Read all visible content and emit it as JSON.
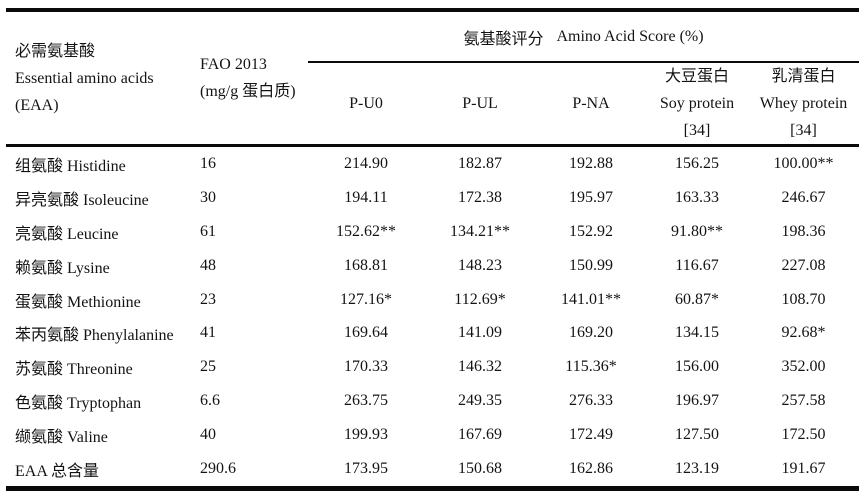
{
  "table": {
    "colors": {
      "text": "#131313",
      "rule": "#0a0a0a",
      "background": "#ffffff"
    },
    "header": {
      "eaa_lines": [
        "必需氨基酸",
        "Essential amino acids",
        "(EAA)"
      ],
      "fao_lines": [
        "FAO 2013",
        "(mg/g 蛋白质)"
      ],
      "group_title_zh": "氨基酸评分",
      "group_title_en": "Amino Acid Score (%)",
      "sub_columns": {
        "pu0": "P-U0",
        "pul": "P-UL",
        "pna": "P-NA",
        "soy_lines": [
          "大豆蛋白",
          "Soy protein",
          "[34]"
        ],
        "whey_lines": [
          "乳清蛋白",
          "Whey protein",
          "[34]"
        ]
      }
    },
    "rows": [
      [
        "组氨酸 Histidine",
        "16",
        "214.90",
        "182.87",
        "192.88",
        "156.25",
        "100.00**"
      ],
      [
        "异亮氨酸 Isoleucine",
        "30",
        "194.11",
        "172.38",
        "195.97",
        "163.33",
        "246.67"
      ],
      [
        "亮氨酸 Leucine",
        "61",
        "152.62**",
        "134.21**",
        "152.92",
        "91.80**",
        "198.36"
      ],
      [
        "赖氨酸 Lysine",
        "48",
        "168.81",
        "148.23",
        "150.99",
        "116.67",
        "227.08"
      ],
      [
        "蛋氨酸 Methionine",
        "23",
        "127.16*",
        "112.69*",
        "141.01**",
        "60.87*",
        "108.70"
      ],
      [
        "苯丙氨酸 Phenylalanine",
        "41",
        "169.64",
        "141.09",
        "169.20",
        "134.15",
        "92.68*"
      ],
      [
        "苏氨酸 Threonine",
        "25",
        "170.33",
        "146.32",
        "115.36*",
        "156.00",
        "352.00"
      ],
      [
        "色氨酸 Tryptophan",
        "6.6",
        "263.75",
        "249.35",
        "276.33",
        "196.97",
        "257.58"
      ],
      [
        "缬氨酸 Valine",
        "40",
        "199.93",
        "167.69",
        "172.49",
        "127.50",
        "172.50"
      ],
      [
        "EAA 总含量",
        "290.6",
        "173.95",
        "150.68",
        "162.86",
        "123.19",
        "191.67"
      ]
    ]
  }
}
